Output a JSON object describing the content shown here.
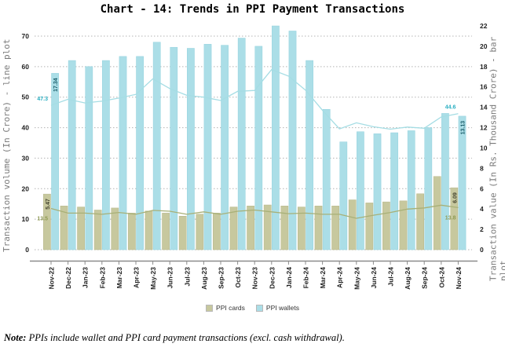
{
  "title": "Chart - 14: Trends in PPI Payment Transactions",
  "note": {
    "label": "Note:",
    "text": " PPIs include wallet and PPI card payment transactions (excl. cash withdrawal)."
  },
  "chart_data": {
    "type": "combo bar+line (bars = transaction value on right axis, lines = transaction volume on left axis)",
    "categories": [
      "Nov-22",
      "Dec-22",
      "Jan-23",
      "Feb-23",
      "Mar-23",
      "Apr-23",
      "May-23",
      "Jun-23",
      "Jul-23",
      "Aug-23",
      "Sep-23",
      "Oct-23",
      "Nov-23",
      "Dec-23",
      "Jan-24",
      "Feb-24",
      "Mar-24",
      "Apr-24",
      "May-24",
      "Jun-24",
      "Jul-24",
      "Aug-24",
      "Sep-24",
      "Oct-24",
      "Nov-24"
    ],
    "left_axis": {
      "label": "Transaction volume (In Crore) - line plot",
      "min": 0,
      "max": 70,
      "step": 10
    },
    "right_axis": {
      "label": "Transaction value (In Rs. Thousand Crore) - bar plot",
      "min": 0,
      "max": 22,
      "step": 2
    },
    "legend": [
      "PPI cards",
      "PPI wallets"
    ],
    "grid": "horizontal dotted gridlines at left-axis ticks",
    "series": [
      {
        "key": "cards_bar",
        "name": "PPI cards",
        "type": "bar",
        "axis": "right",
        "color": "#c7c89e",
        "border": "#b5b68a",
        "label_color": "#44442f",
        "values": [
          5.47,
          4.3,
          4.2,
          3.9,
          4.1,
          3.6,
          3.8,
          3.6,
          3.3,
          3.5,
          3.6,
          4.2,
          4.3,
          4.4,
          4.3,
          4.2,
          4.3,
          4.3,
          4.9,
          4.6,
          4.7,
          4.8,
          5.5,
          7.2,
          6.09
        ]
      },
      {
        "key": "wallets_bar",
        "name": "PPI wallets",
        "type": "bar",
        "axis": "right",
        "color": "#abdee7",
        "border": "#93d2de",
        "label_color": "#1e616d",
        "values": [
          17.34,
          18.6,
          18.0,
          18.6,
          19.0,
          19.0,
          20.4,
          19.9,
          19.8,
          20.2,
          20.1,
          20.8,
          20.0,
          22.0,
          21.5,
          18.6,
          13.8,
          10.6,
          11.6,
          11.4,
          11.5,
          11.7,
          12.0,
          13.4,
          13.13
        ]
      },
      {
        "key": "cards_line",
        "name": "PPI cards volume",
        "type": "line",
        "axis": "left",
        "color": "#a8b077",
        "label_color": "#8f9a52",
        "values": [
          13.5,
          12.0,
          12.0,
          11.6,
          12.2,
          11.6,
          12.9,
          12.6,
          11.6,
          12.4,
          11.6,
          12.6,
          13.0,
          12.4,
          11.8,
          12.0,
          11.6,
          11.6,
          10.3,
          11.3,
          12.2,
          13.3,
          13.7,
          14.6,
          13.8
        ]
      },
      {
        "key": "wallets_line",
        "name": "PPI wallets volume",
        "type": "line",
        "axis": "left",
        "color": "#a5dde4",
        "label_color": "#2aafc2",
        "values": [
          47.3,
          49.3,
          48.1,
          48.7,
          49.7,
          50.9,
          56.0,
          52.8,
          50.6,
          50.0,
          48.9,
          51.9,
          52.2,
          59.0,
          56.9,
          52.3,
          45.7,
          39.6,
          41.6,
          40.3,
          39.5,
          40.2,
          39.8,
          43.5,
          44.6
        ]
      }
    ],
    "point_labels": [
      {
        "series": "wallets_bar",
        "category": "Nov-22",
        "text": "17.34"
      },
      {
        "series": "cards_bar",
        "category": "Nov-22",
        "text": "5.47"
      },
      {
        "series": "wallets_line",
        "category": "Nov-22",
        "text": "47.3"
      },
      {
        "series": "cards_line",
        "category": "Nov-22",
        "text": "13.5"
      },
      {
        "series": "wallets_bar",
        "category": "Nov-24",
        "text": "13.13"
      },
      {
        "series": "cards_bar",
        "category": "Nov-24",
        "text": "6.09"
      },
      {
        "series": "wallets_line",
        "category": "Nov-24",
        "text": "44.6"
      },
      {
        "series": "cards_line",
        "category": "Nov-24",
        "text": "13.8"
      }
    ]
  }
}
